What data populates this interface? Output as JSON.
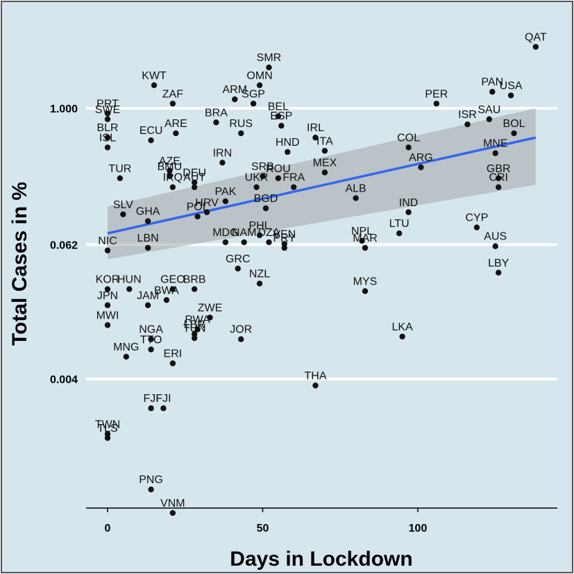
{
  "chart_data": {
    "type": "scatter",
    "xlabel": "Days in Lockdown",
    "ylabel": "Total Cases in %",
    "xlim": [
      -7,
      145
    ],
    "x_ticks": [
      0,
      50,
      100
    ],
    "y_scale": "log",
    "ylim": [
      0.00015,
      4.6
    ],
    "y_ticks": [
      {
        "value": 1.0,
        "label": "1.000"
      },
      {
        "value": 0.062,
        "label": "0.062"
      },
      {
        "value": 0.004,
        "label": "0.004"
      }
    ],
    "grid": "horizontal major only",
    "legend": "none",
    "trend": {
      "type": "linear",
      "color": "#3366ee",
      "band_color": "#9a9a9a",
      "x": [
        0,
        138
      ],
      "y": [
        0.078,
        0.55
      ],
      "band_lower": [
        0.046,
        0.21
      ],
      "band_upper": [
        0.135,
        1.0
      ]
    },
    "colors": {
      "background": "#d6e6ed",
      "point": "#111111",
      "grid": "#ffffff"
    },
    "points": [
      {
        "label": "QAT",
        "x": 138,
        "y": 3.5
      },
      {
        "label": "SMR",
        "x": 52,
        "y": 2.3
      },
      {
        "label": "KWT",
        "x": 15,
        "y": 1.6
      },
      {
        "label": "ARM",
        "x": 41,
        "y": 1.2
      },
      {
        "label": "OMN",
        "x": 49,
        "y": 1.6
      },
      {
        "label": "ZAF",
        "x": 21,
        "y": 1.1
      },
      {
        "label": "SGP",
        "x": 47,
        "y": 1.1
      },
      {
        "label": "SWE",
        "x": 0,
        "y": 0.8
      },
      {
        "label": "PRT",
        "x": 0,
        "y": 0.9
      },
      {
        "label": "BRA",
        "x": 35,
        "y": 0.75
      },
      {
        "label": "RUS",
        "x": 43,
        "y": 0.6
      },
      {
        "label": "BEL",
        "x": 55,
        "y": 0.85
      },
      {
        "label": "ARE",
        "x": 22,
        "y": 0.6
      },
      {
        "label": "ECU",
        "x": 14,
        "y": 0.52
      },
      {
        "label": "BLR",
        "x": 0,
        "y": 0.55
      },
      {
        "label": "ISL",
        "x": 0,
        "y": 0.45
      },
      {
        "label": "ESP",
        "x": 56,
        "y": 0.7
      },
      {
        "label": "IRL",
        "x": 67,
        "y": 0.55
      },
      {
        "label": "ITA",
        "x": 70,
        "y": 0.42
      },
      {
        "label": "IRN",
        "x": 37,
        "y": 0.33
      },
      {
        "label": "HND",
        "x": 58,
        "y": 0.41
      },
      {
        "label": "AZE",
        "x": 20,
        "y": 0.28
      },
      {
        "label": "BMU",
        "x": 20,
        "y": 0.25
      },
      {
        "label": "SRB",
        "x": 50,
        "y": 0.25
      },
      {
        "label": "MEX",
        "x": 70,
        "y": 0.27
      },
      {
        "label": "TUR",
        "x": 4,
        "y": 0.24
      },
      {
        "label": "IRQ",
        "x": 21,
        "y": 0.2
      },
      {
        "label": "DEU",
        "x": 28,
        "y": 0.22
      },
      {
        "label": "UKR",
        "x": 48,
        "y": 0.2
      },
      {
        "label": "ROU",
        "x": 55,
        "y": 0.24
      },
      {
        "label": "FRA",
        "x": 60,
        "y": 0.2
      },
      {
        "label": "GHA",
        "x": 13,
        "y": 0.1
      },
      {
        "label": "SLV",
        "x": 5,
        "y": 0.115
      },
      {
        "label": "AUT",
        "x": 28,
        "y": 0.2
      },
      {
        "label": "PAK",
        "x": 38,
        "y": 0.15
      },
      {
        "label": "BGD",
        "x": 51,
        "y": 0.13
      },
      {
        "label": "ALB",
        "x": 80,
        "y": 0.16
      },
      {
        "label": "NIC",
        "x": 0,
        "y": 0.055
      },
      {
        "label": "POL",
        "x": 29,
        "y": 0.11
      },
      {
        "label": "HRV",
        "x": 32,
        "y": 0.12
      },
      {
        "label": "PHL",
        "x": 49,
        "y": 0.075
      },
      {
        "label": "LBN",
        "x": 13,
        "y": 0.058
      },
      {
        "label": "MDG",
        "x": 38,
        "y": 0.065
      },
      {
        "label": "NAM",
        "x": 44,
        "y": 0.065
      },
      {
        "label": "DZA",
        "x": 52,
        "y": 0.065
      },
      {
        "label": "PRY",
        "x": 57,
        "y": 0.058
      },
      {
        "label": "VEN",
        "x": 57,
        "y": 0.063
      },
      {
        "label": "NPL",
        "x": 82,
        "y": 0.067
      },
      {
        "label": "MAR",
        "x": 83,
        "y": 0.058
      },
      {
        "label": "LTU",
        "x": 94,
        "y": 0.078
      },
      {
        "label": "IND",
        "x": 97,
        "y": 0.12
      },
      {
        "label": "CYP",
        "x": 119,
        "y": 0.088
      },
      {
        "label": "AUS",
        "x": 125,
        "y": 0.06
      },
      {
        "label": "LBY",
        "x": 126,
        "y": 0.035
      },
      {
        "label": "KOR",
        "x": 0,
        "y": 0.025
      },
      {
        "label": "HUN",
        "x": 7,
        "y": 0.025
      },
      {
        "label": "GEO",
        "x": 21,
        "y": 0.025
      },
      {
        "label": "BRB",
        "x": 28,
        "y": 0.025
      },
      {
        "label": "GRC",
        "x": 42,
        "y": 0.038
      },
      {
        "label": "NZL",
        "x": 49,
        "y": 0.028
      },
      {
        "label": "MYS",
        "x": 83,
        "y": 0.024
      },
      {
        "label": "JPN",
        "x": 0,
        "y": 0.018
      },
      {
        "label": "JAM",
        "x": 13,
        "y": 0.018
      },
      {
        "label": "BWA",
        "x": 19,
        "y": 0.02
      },
      {
        "label": "ZWE",
        "x": 33,
        "y": 0.014
      },
      {
        "label": "MWI",
        "x": 0,
        "y": 0.012
      },
      {
        "label": "NGA",
        "x": 14,
        "y": 0.009
      },
      {
        "label": "LBR",
        "x": 28,
        "y": 0.01
      },
      {
        "label": "RWA",
        "x": 29,
        "y": 0.011
      },
      {
        "label": "JOR",
        "x": 43,
        "y": 0.009
      },
      {
        "label": "LKA",
        "x": 95,
        "y": 0.0095
      },
      {
        "label": "MNG",
        "x": 6,
        "y": 0.0063
      },
      {
        "label": "TTO",
        "x": 14,
        "y": 0.0073
      },
      {
        "label": "TUN",
        "x": 28,
        "y": 0.0092
      },
      {
        "label": "ERI",
        "x": 21,
        "y": 0.0055
      },
      {
        "label": "THA",
        "x": 67,
        "y": 0.0035
      },
      {
        "label": "FJI",
        "x": 14,
        "y": 0.0022
      },
      {
        "label": "FJI",
        "x": 18,
        "y": 0.0022
      },
      {
        "label": "TWN",
        "x": 0,
        "y": 0.0013
      },
      {
        "label": "TLS",
        "x": 0,
        "y": 0.0012
      },
      {
        "label": "PNG",
        "x": 14,
        "y": 0.00042
      },
      {
        "label": "VNM",
        "x": 21,
        "y": 0.00026
      },
      {
        "label": "PER",
        "x": 106,
        "y": 1.1
      },
      {
        "label": "PAN",
        "x": 124,
        "y": 1.4
      },
      {
        "label": "USA",
        "x": 130,
        "y": 1.3
      },
      {
        "label": "ISR",
        "x": 116,
        "y": 0.72
      },
      {
        "label": "SAU",
        "x": 123,
        "y": 0.8
      },
      {
        "label": "BOL",
        "x": 131,
        "y": 0.6
      },
      {
        "label": "COL",
        "x": 97,
        "y": 0.45
      },
      {
        "label": "MNE",
        "x": 125,
        "y": 0.4
      },
      {
        "label": "ARG",
        "x": 101,
        "y": 0.3
      },
      {
        "label": "GBR",
        "x": 126,
        "y": 0.24
      },
      {
        "label": "CRI",
        "x": 126,
        "y": 0.2
      }
    ]
  }
}
